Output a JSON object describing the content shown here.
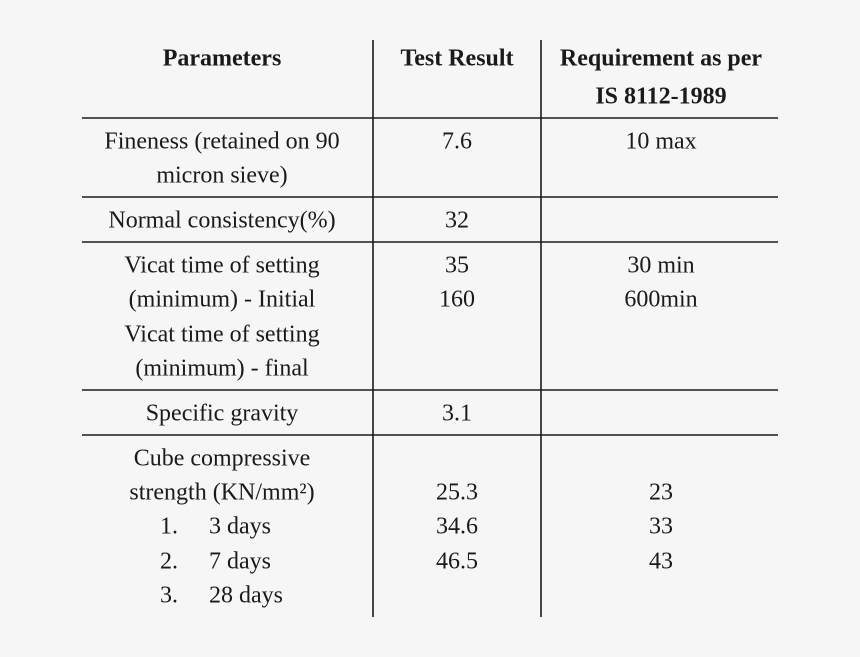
{
  "table": {
    "header": {
      "parameters": "Parameters",
      "test_result": "Test Result",
      "requirement": [
        "Requirement as per",
        "IS 8112-1989"
      ]
    },
    "rows": [
      {
        "parameter": [
          "Fineness (retained on 90",
          "micron sieve)"
        ],
        "test_result": [
          "7.6"
        ],
        "requirement": [
          "10 max"
        ]
      },
      {
        "parameter": [
          "Normal consistency(%)"
        ],
        "test_result": [
          "32"
        ],
        "requirement": []
      },
      {
        "parameter": [
          "Vicat time of setting",
          "(minimum) - Initial",
          "Vicat time of setting",
          "(minimum) - final"
        ],
        "test_result": [
          "35",
          "160"
        ],
        "requirement": [
          "30 min",
          "600min"
        ]
      },
      {
        "parameter": [
          "Specific gravity"
        ],
        "test_result": [
          "3.1"
        ],
        "requirement": []
      },
      {
        "parameter": [
          "Cube compressive",
          "strength (KN/mm²)"
        ],
        "items": [
          {
            "number": "1.",
            "text": "3 days"
          },
          {
            "number": "2.",
            "text": "7 days"
          },
          {
            "number": "3.",
            "text": "28 days"
          }
        ],
        "test_result": [
          "25.3",
          "34.6",
          "46.5"
        ],
        "requirement": [
          "23",
          "33",
          "43"
        ]
      }
    ]
  }
}
